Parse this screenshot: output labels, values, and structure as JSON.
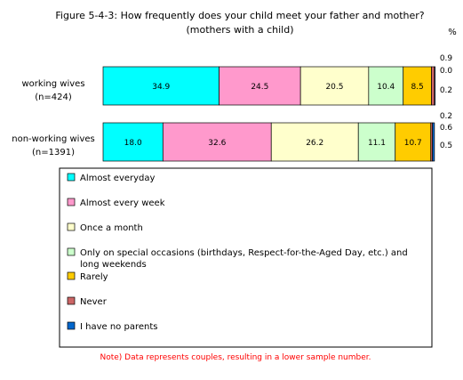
{
  "chart_data": {
    "type": "bar",
    "orientation": "horizontal",
    "stacked": true,
    "title": "Figure 5-4-3: How frequently does your child meet your father and mother?",
    "subtitle": "(mothers with a child)",
    "unit_label": "%",
    "xlim": [
      0,
      100
    ],
    "grid": false,
    "categories": [
      [
        "working wives",
        "(n=424)"
      ],
      [
        "non-working wives",
        "(n=1391)"
      ]
    ],
    "series": [
      {
        "name": "Almost everyday",
        "values": [
          34.9,
          18.0
        ],
        "labels": [
          "34.9",
          "18.0"
        ],
        "color": "#00ffff"
      },
      {
        "name": "Almost every week",
        "values": [
          24.5,
          32.6
        ],
        "labels": [
          "24.5",
          "32.6"
        ],
        "color": "#ff99cc"
      },
      {
        "name": "Once a month",
        "values": [
          20.5,
          26.2
        ],
        "labels": [
          "20.5",
          "26.2"
        ],
        "color": "#ffffcc"
      },
      {
        "name": "Only on special occasions (birthdays, Respect-for-the-Aged Day, etc.) and long weekends",
        "values": [
          10.4,
          11.1
        ],
        "labels": [
          "10.4",
          "11.1"
        ],
        "color": "#ccffcc"
      },
      {
        "name": "Rarely",
        "values": [
          8.5,
          10.7
        ],
        "labels": [
          "8.5",
          "10.7"
        ],
        "color": "#ffcc00"
      },
      {
        "name": "Never",
        "values": [
          0.9,
          0.5
        ],
        "labels": [
          "0.9",
          "0.5"
        ],
        "color": "#cc6666"
      },
      {
        "name": "I have no parents",
        "values": [
          0.2,
          0.6
        ],
        "labels": [
          "0.2",
          "0.6"
        ],
        "color": "#0066cc"
      }
    ],
    "legend_lines": [
      [
        "Almost everyday"
      ],
      [
        "Almost every week"
      ],
      [
        "Once a month"
      ],
      [
        "Only on special occasions (birthdays, Respect-for-the-Aged Day, etc.) and",
        "long weekends"
      ],
      [
        "Rarely"
      ],
      [
        "Never"
      ],
      [
        "I have no parents"
      ]
    ],
    "small_value_labels": [
      [
        "0.9",
        "0.0",
        "0.2"
      ],
      [
        "0.2",
        "0.6",
        "0.5"
      ]
    ],
    "legend_position": "bottom",
    "note": "Note) Data represents couples, resulting in a lower sample number."
  }
}
